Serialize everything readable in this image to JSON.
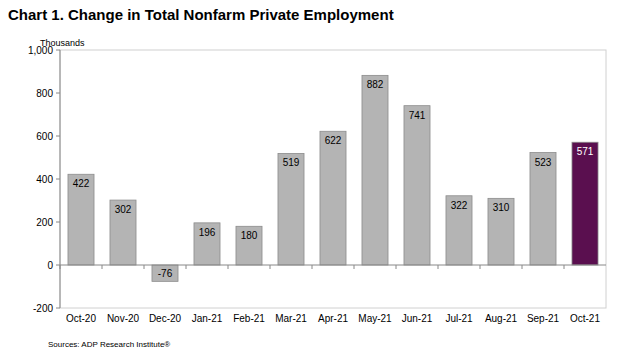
{
  "chart_data": {
    "type": "bar",
    "title": "Chart 1. Change in Total Nonfarm Private Employment",
    "y_label": "Thousands",
    "annotations": [
      "Sources: ADP Research Institute®"
    ],
    "categories": [
      "Oct-20",
      "Nov-20",
      "Dec-20",
      "Jan-21",
      "Feb-21",
      "Mar-21",
      "Apr-21",
      "May-21",
      "Jun-21",
      "Jul-21",
      "Aug-21",
      "Sep-21",
      "Oct-21"
    ],
    "values": [
      422,
      302,
      -76,
      196,
      180,
      519,
      622,
      882,
      741,
      322,
      310,
      523,
      571
    ],
    "colors": [
      "#b4b4b4",
      "#b4b4b4",
      "#b4b4b4",
      "#b4b4b4",
      "#b4b4b4",
      "#b4b4b4",
      "#b4b4b4",
      "#b4b4b4",
      "#b4b4b4",
      "#b4b4b4",
      "#b4b4b4",
      "#b4b4b4",
      "#5a0f4f"
    ],
    "ylim": [
      -200,
      1000
    ],
    "yticks": [
      -200,
      0,
      200,
      400,
      600,
      800,
      {
        "value": 1000,
        "label": "1,000"
      }
    ],
    "grid": false,
    "data_labels": true
  }
}
